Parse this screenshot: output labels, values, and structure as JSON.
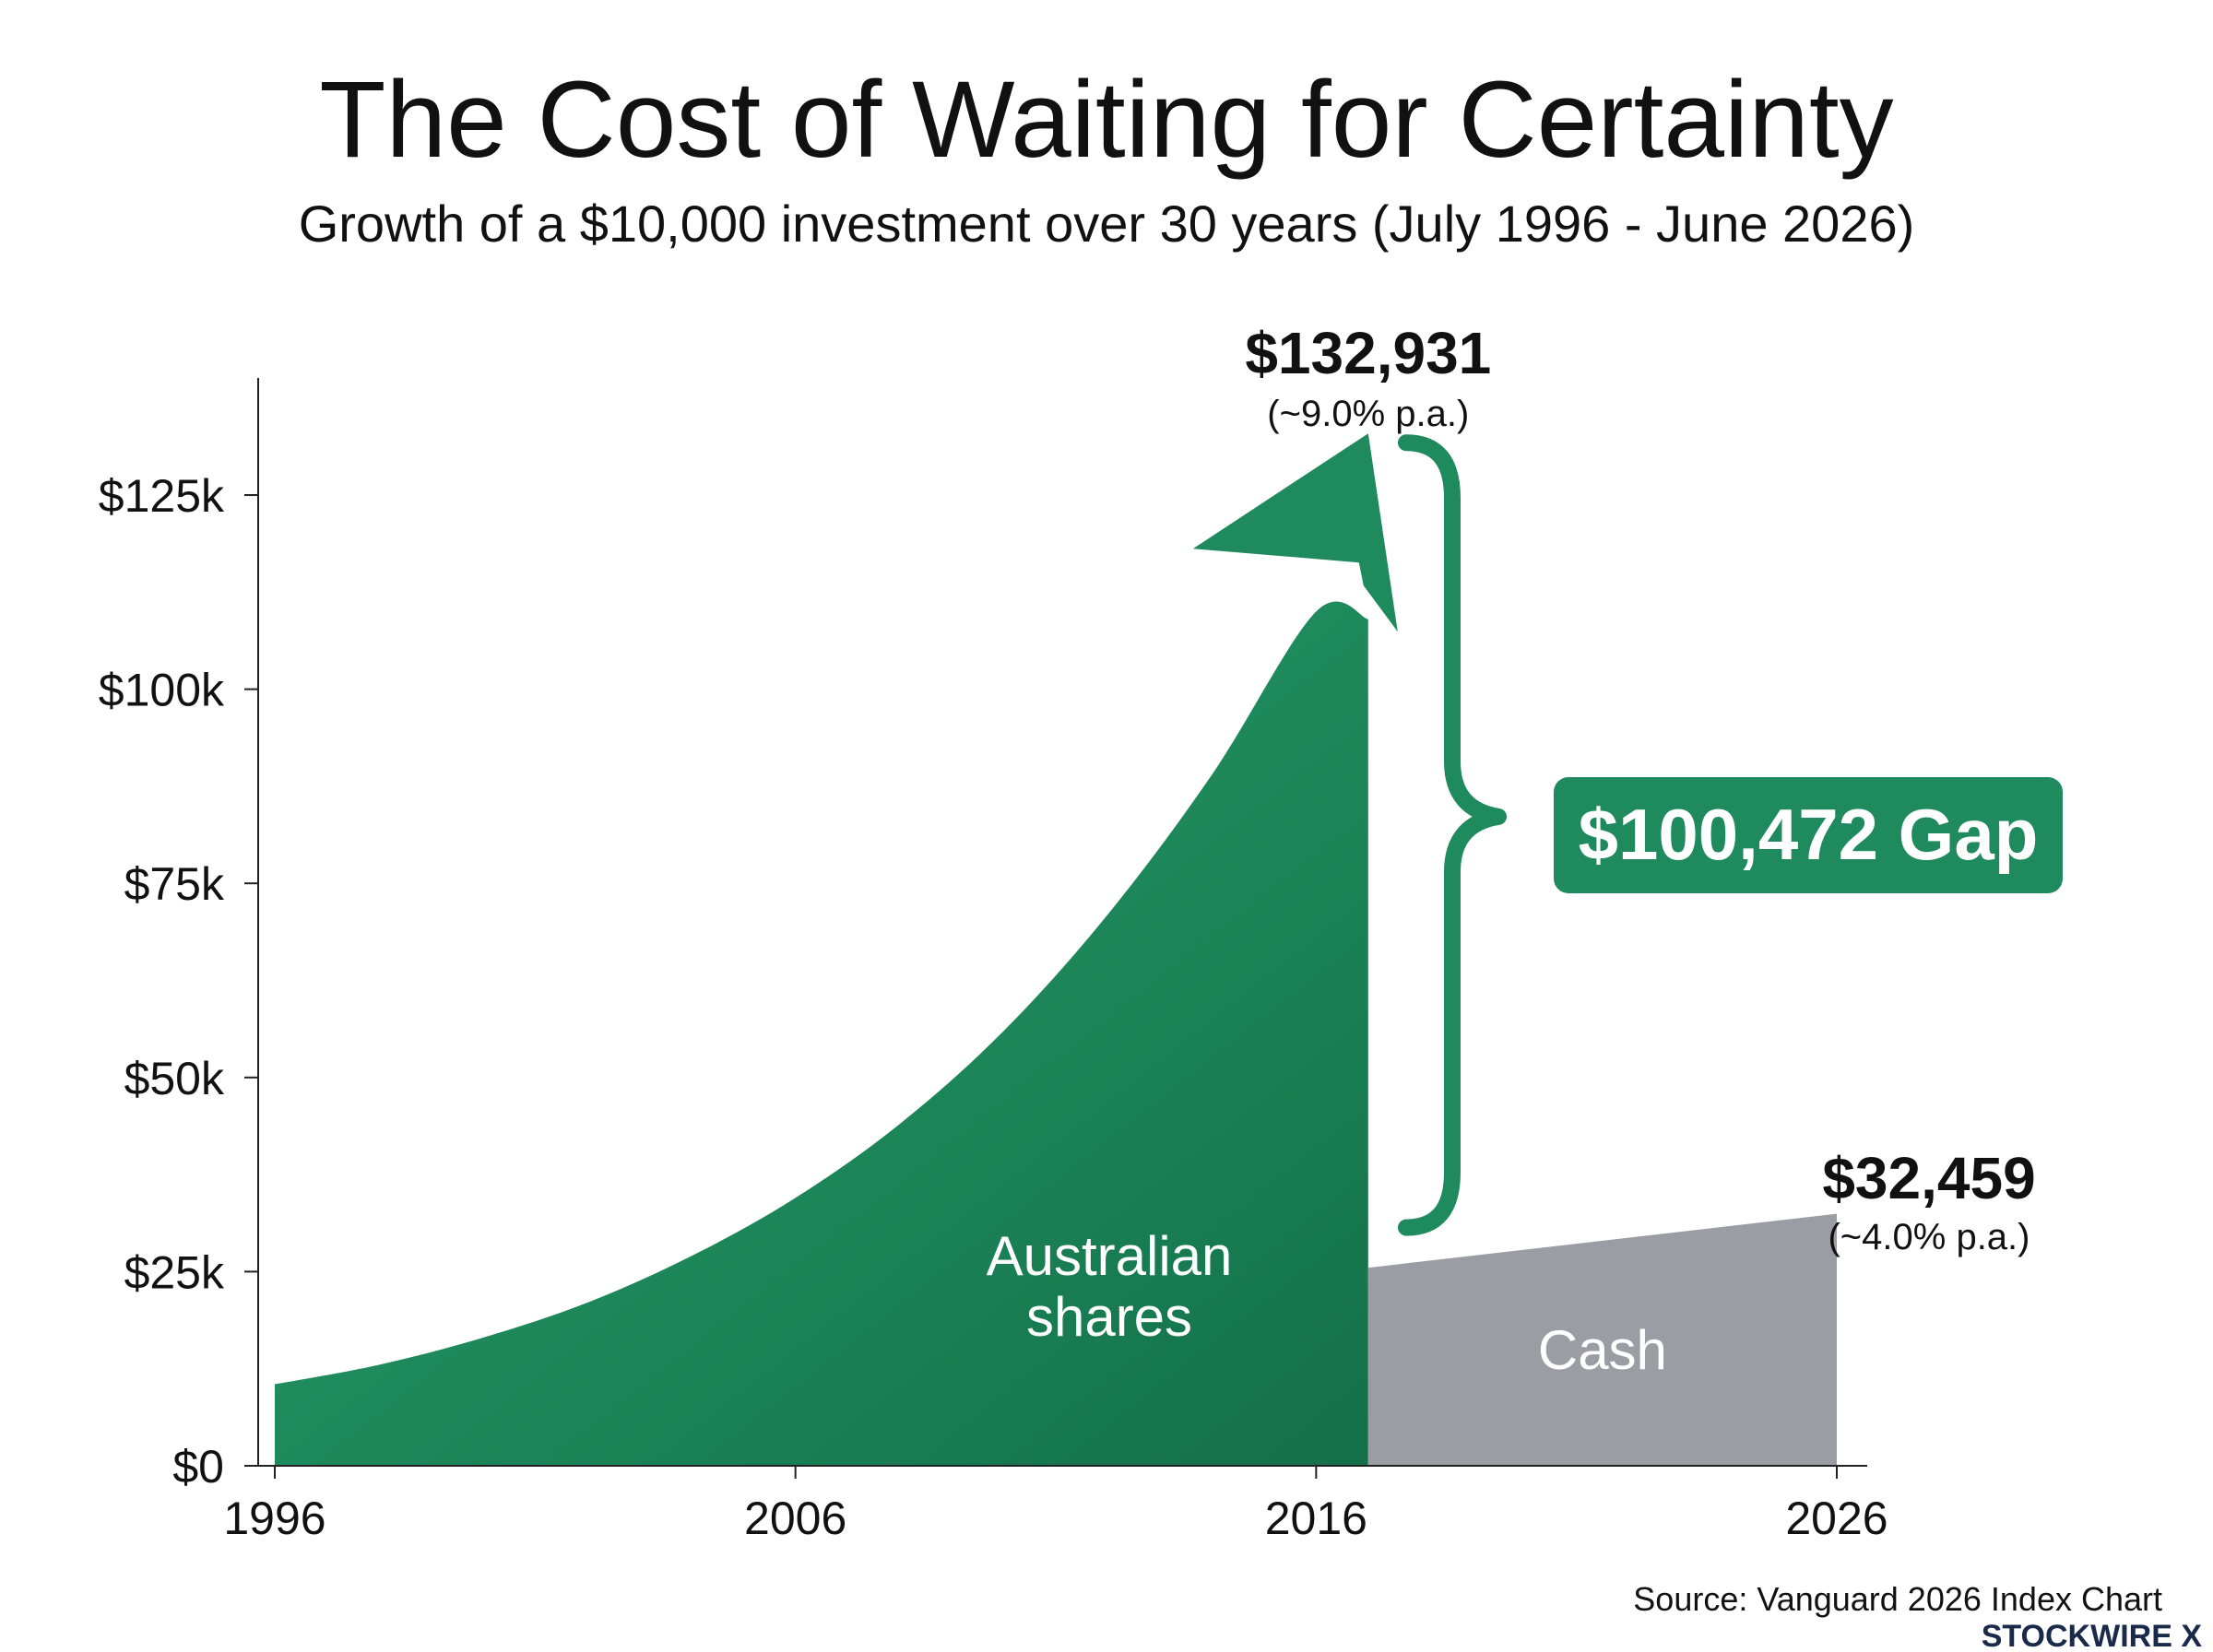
{
  "chart_data": {
    "type": "area",
    "title": "The Cost of Waiting for Certainty",
    "subtitle": "Growth of a $10,000 investment over 30 years (July 1996 - June 2026)",
    "x_ticks": [
      "1996",
      "2006",
      "2016",
      "2026"
    ],
    "y_ticks": [
      "$0",
      "$25k",
      "$50k",
      "$75k",
      "$100k",
      "$125k"
    ],
    "y_tick_values": [
      0,
      25000,
      50000,
      75000,
      100000,
      125000
    ],
    "x_range": [
      1996,
      2026
    ],
    "ylim": [
      0,
      140000
    ],
    "series": [
      {
        "name": "Australian shares",
        "color": "#1e8a5e",
        "x": [
          1996,
          1998,
          2000,
          2002,
          2004,
          2006,
          2008,
          2010,
          2012,
          2014,
          2016,
          2017
        ],
        "values": [
          10500,
          13000,
          16500,
          21000,
          27000,
          34500,
          44000,
          56000,
          71000,
          89000,
          110000,
          132931
        ],
        "end_label": "$132,931",
        "rate_label": "(~9.0% p.a.)"
      },
      {
        "name": "Cash",
        "color": "#9a9da3",
        "x": [
          2017,
          2026
        ],
        "values": [
          25500,
          32459
        ],
        "end_label": "$32,459",
        "rate_label": "(~4.0% p.a.)"
      }
    ],
    "gap_label": "$100,472 Gap",
    "grid": false,
    "legend": "none"
  },
  "footer": {
    "source": "Source: Vanguard 2026 Index Chart",
    "brand": "STOCKWIRE X"
  },
  "colors": {
    "green": "#1e8a5e",
    "green_dark": "#14714b",
    "gray": "#9a9da3",
    "text": "#111111"
  }
}
